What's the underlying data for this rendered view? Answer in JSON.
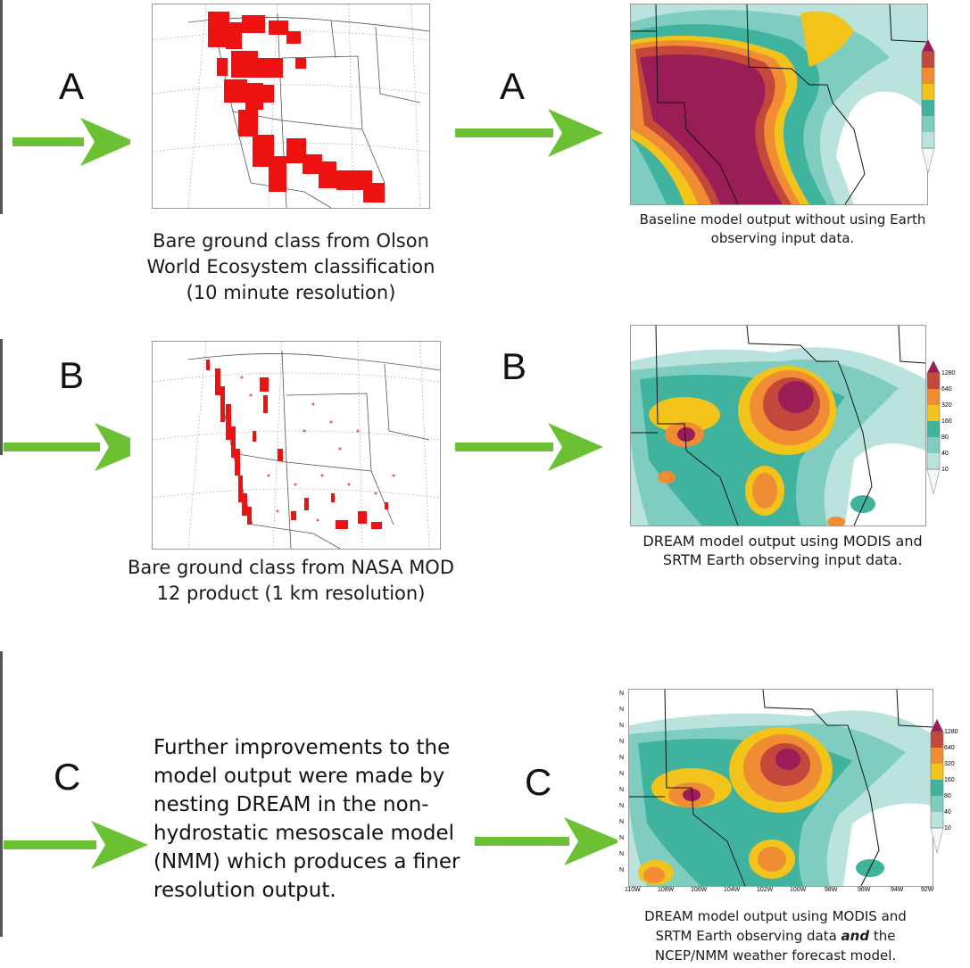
{
  "rows": [
    {
      "letter_left": "A",
      "letter_right": "A",
      "left_caption": [
        "Bare ground class from Olson",
        "World Ecosystem classification",
        "(10 minute resolution)"
      ],
      "right_caption": [
        "Baseline model output without using Earth",
        "observing input data."
      ]
    },
    {
      "letter_left": "B",
      "letter_right": "B",
      "left_caption": [
        "Bare ground class from NASA MOD",
        "12 product (1 km resolution)"
      ],
      "right_caption": [
        "DREAM model output using MODIS and",
        "SRTM Earth observing input data."
      ],
      "legend_labels": [
        "1280",
        "640",
        "320",
        "160",
        "80",
        "40",
        "10"
      ]
    },
    {
      "letter_left": "C",
      "letter_right": "C",
      "side_text": [
        "Further improvements to the",
        "model output were made by",
        "nesting DREAM in the non-",
        "hydrostatic mesoscale model",
        "(NMM) which produces a finer",
        "resolution output."
      ],
      "right_caption_line1": "DREAM model  output using MODIS and",
      "right_caption_line2_pre": "SRTM Earth observing data ",
      "right_caption_line2_em": "and",
      "right_caption_line2_post": " the",
      "right_caption_line3": "NCEP/NMM weather forecast model.",
      "legend_labels": [
        "1280",
        "640",
        "320",
        "160",
        "80",
        "40",
        "10"
      ],
      "lon_labels": [
        "110W",
        "108W",
        "106W",
        "104W",
        "102W",
        "100W",
        "98W",
        "96W",
        "94W",
        "92W"
      ],
      "lat_labels": [
        "N",
        "N",
        "N",
        "N",
        "N",
        "N",
        "N",
        "N",
        "N",
        "N",
        "N",
        "N"
      ]
    }
  ],
  "colors": {
    "arrow": "#6cc034",
    "bare_ground": "#ee1111",
    "legend": [
      "#f2f9f6",
      "#b9e3dc",
      "#7fcdc0",
      "#3fb39d",
      "#f2c31a",
      "#ef8c34",
      "#c4473b",
      "#9a1d57"
    ]
  }
}
